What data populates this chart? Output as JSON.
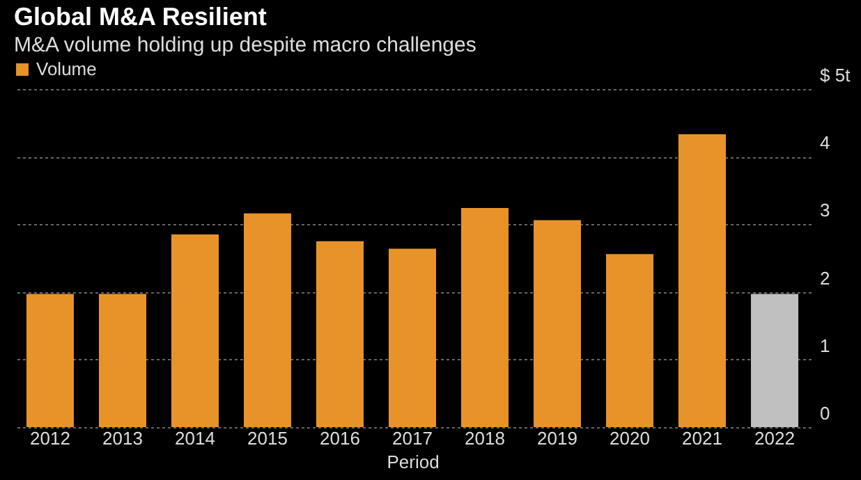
{
  "chart_data": {
    "type": "bar",
    "title": "Global M&A Resilient",
    "subtitle": "M&A volume holding up despite macro challenges",
    "xlabel": "Period",
    "categories": [
      "2012",
      "2013",
      "2014",
      "2015",
      "2016",
      "2017",
      "2018",
      "2019",
      "2020",
      "2021",
      "2022"
    ],
    "series": [
      {
        "name": "Volume",
        "color": "#e8932a",
        "values": [
          1.97,
          1.97,
          2.85,
          3.16,
          2.75,
          2.64,
          3.24,
          3.06,
          2.56,
          4.33,
          null
        ]
      },
      {
        "color": "#c0c0c0",
        "values": [
          null,
          null,
          null,
          null,
          null,
          null,
          null,
          null,
          null,
          null,
          1.97
        ]
      }
    ],
    "ylim": [
      0,
      5
    ],
    "yticks": [
      0,
      1,
      2,
      3,
      4,
      {
        "value": 5,
        "label": "$ 5t"
      }
    ],
    "grid": "y",
    "legend": "top left"
  }
}
